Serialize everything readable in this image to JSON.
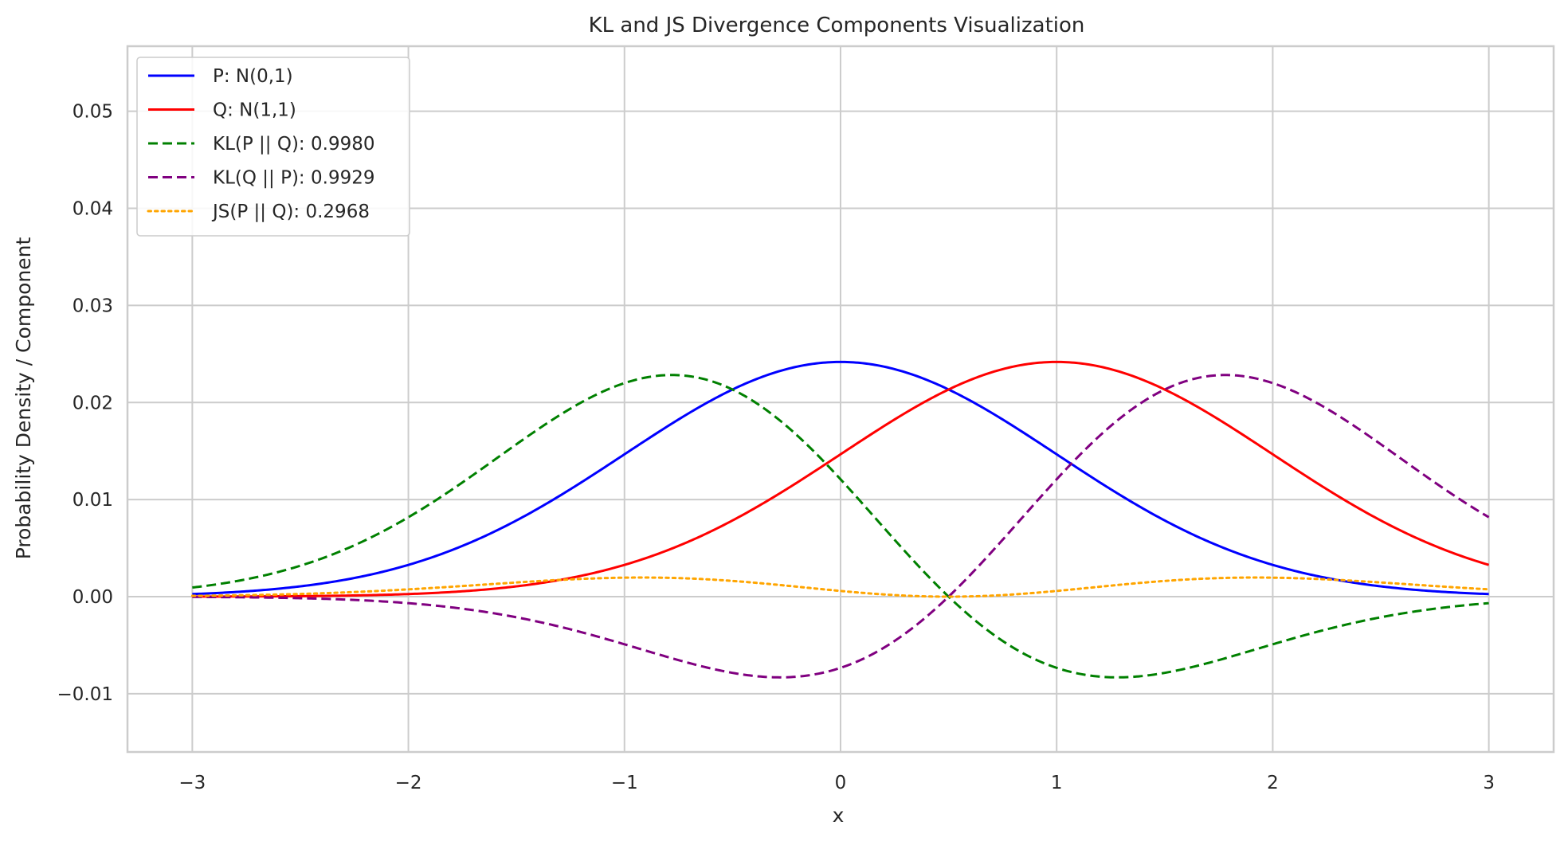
{
  "chart_data": {
    "type": "line",
    "title": "KL and JS Divergence Components Visualization",
    "xlabel": "x",
    "ylabel": "Probability Density / Component",
    "xlim": [
      -3.3,
      3.3
    ],
    "ylim": [
      -0.016,
      0.0567
    ],
    "xticks": [
      -3,
      -2,
      -1,
      0,
      1,
      2,
      3
    ],
    "xtick_labels": [
      "−3",
      "−2",
      "−1",
      "0",
      "1",
      "2",
      "3"
    ],
    "yticks": [
      -0.01,
      0.0,
      0.01,
      0.02,
      0.03,
      0.04,
      0.05
    ],
    "ytick_labels": [
      "−0.01",
      "0.00",
      "0.01",
      "0.02",
      "0.03",
      "0.04",
      "0.05"
    ],
    "grid": true,
    "legend_position": "top-left",
    "x_domain": [
      -3,
      3
    ],
    "series": [
      {
        "name": "P: N(0,1)",
        "color": "#0000ff",
        "style": "solid",
        "description": "density of N(0,1) scaled by grid step",
        "peak": {
          "x": 0.0,
          "y": 0.0342
        },
        "points": [
          [
            -3,
            0.0001
          ],
          [
            -2,
            0.0006
          ],
          [
            -1,
            0.0125
          ],
          [
            0,
            0.0342
          ],
          [
            1,
            0.0125
          ],
          [
            2,
            0.0006
          ],
          [
            3,
            0.0001
          ]
        ]
      },
      {
        "name": "Q: N(1,1)",
        "color": "#ff0000",
        "style": "solid",
        "description": "density of N(1,1) scaled by grid step",
        "peak": {
          "x": 1.0,
          "y": 0.0342
        },
        "points": [
          [
            -3,
            0.0
          ],
          [
            -2,
            0.0
          ],
          [
            -1,
            0.0006
          ],
          [
            0,
            0.0125
          ],
          [
            1,
            0.0342
          ],
          [
            2,
            0.0125
          ],
          [
            3,
            0.0006
          ]
        ]
      },
      {
        "name": "KL(P || Q): 0.9980",
        "color": "#008000",
        "style": "dashed",
        "description": "pointwise p*log(p/q)",
        "extrema": [
          {
            "x": -0.5,
            "y": 0.0532
          },
          {
            "x": 1.0,
            "y": -0.0126
          }
        ],
        "points": [
          [
            -3,
            0.0001
          ],
          [
            -2,
            0.003
          ],
          [
            -1,
            0.0375
          ],
          [
            -0.5,
            0.0532
          ],
          [
            0,
            0.0342
          ],
          [
            0.5,
            0.0
          ],
          [
            1,
            -0.0126
          ],
          [
            2,
            -0.0018
          ],
          [
            3,
            0.0
          ]
        ]
      },
      {
        "name": "KL(Q || P): 0.9929",
        "color": "#800080",
        "style": "dashed",
        "description": "pointwise q*log(q/p)",
        "extrema": [
          {
            "x": 0.0,
            "y": -0.0126
          },
          {
            "x": 1.5,
            "y": 0.0532
          }
        ],
        "points": [
          [
            -3,
            0.0
          ],
          [
            -2,
            0.0
          ],
          [
            -1,
            -0.0018
          ],
          [
            0,
            -0.0126
          ],
          [
            0.5,
            0.0
          ],
          [
            1,
            0.0342
          ],
          [
            1.5,
            0.0532
          ],
          [
            2,
            0.0375
          ],
          [
            3,
            0.003
          ]
        ]
      },
      {
        "name": "JS(P || Q): 0.2968",
        "color": "#ffa500",
        "style": "dotted",
        "description": "pointwise Jensen-Shannon component",
        "extrema": [
          {
            "x": -0.5,
            "y": 0.0049
          },
          {
            "x": 0.5,
            "y": 0.0
          },
          {
            "x": 1.5,
            "y": 0.0049
          }
        ],
        "points": [
          [
            -3,
            0.0
          ],
          [
            -2,
            0.0007
          ],
          [
            -1,
            0.0033
          ],
          [
            -0.5,
            0.0049
          ],
          [
            0,
            0.0026
          ],
          [
            0.5,
            0.0
          ],
          [
            1,
            0.0026
          ],
          [
            1.5,
            0.0049
          ],
          [
            2,
            0.0033
          ],
          [
            3,
            0.0007
          ]
        ]
      }
    ]
  }
}
